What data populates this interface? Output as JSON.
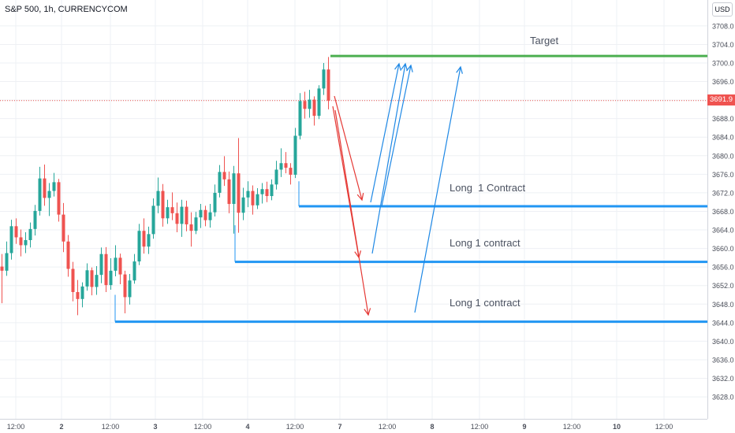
{
  "header": {
    "symbol": "S&P 500, 1h, CURRENCYCOM",
    "currency": "USD"
  },
  "chart_data": {
    "type": "candlestick",
    "title": "S&P 500, 1h, CURRENCYCOM",
    "last_price": "3691.9",
    "ylim": [
      3625,
      3712
    ],
    "y_ticks": [
      "3708.0",
      "3704.0",
      "3700.0",
      "3696.0",
      "3692.0",
      "3688.0",
      "3684.0",
      "3680.0",
      "3676.0",
      "3672.0",
      "3668.0",
      "3664.0",
      "3660.0",
      "3656.0",
      "3652.0",
      "3648.0",
      "3644.0",
      "3640.0",
      "3636.0",
      "3632.0",
      "3628.0"
    ],
    "x_ticks": [
      "12:00",
      "2",
      "12:00",
      "3",
      "12:00",
      "4",
      "12:00",
      "7",
      "12:00",
      "8",
      "12:00",
      "9",
      "12:00",
      "10",
      "12:00"
    ],
    "grid": true,
    "candles": [
      [
        3656.1,
        3658.8,
        3648.2,
        3655.2
      ],
      [
        3655.2,
        3661.5,
        3654.1,
        3659.0
      ],
      [
        3659.0,
        3666.2,
        3657.6,
        3664.8
      ],
      [
        3664.8,
        3666.5,
        3661.0,
        3662.4
      ],
      [
        3662.4,
        3664.1,
        3658.3,
        3660.7
      ],
      [
        3660.7,
        3663.5,
        3659.0,
        3661.8
      ],
      [
        3661.8,
        3665.6,
        3660.2,
        3664.2
      ],
      [
        3664.2,
        3669.4,
        3662.8,
        3668.1
      ],
      [
        3668.1,
        3677.6,
        3667.1,
        3675.1
      ],
      [
        3675.1,
        3678.1,
        3669.2,
        3670.9
      ],
      [
        3670.9,
        3674.1,
        3667.0,
        3672.4
      ],
      [
        3672.4,
        3676.3,
        3671.2,
        3674.3
      ],
      [
        3674.3,
        3675.0,
        3665.8,
        3667.3
      ],
      [
        3667.3,
        3669.8,
        3659.2,
        3661.5
      ],
      [
        3661.5,
        3662.9,
        3653.9,
        3655.6
      ],
      [
        3655.6,
        3657.1,
        3648.6,
        3650.6
      ],
      [
        3650.6,
        3653.2,
        3645.6,
        3649.1
      ],
      [
        3649.1,
        3652.7,
        3647.3,
        3651.8
      ],
      [
        3651.8,
        3656.8,
        3650.9,
        3655.3
      ],
      [
        3655.3,
        3655.9,
        3649.9,
        3651.7
      ],
      [
        3651.7,
        3656.2,
        3650.0,
        3654.3
      ],
      [
        3654.3,
        3660.2,
        3652.5,
        3658.8
      ],
      [
        3658.8,
        3660.3,
        3650.6,
        3652.1
      ],
      [
        3652.1,
        3657.9,
        3651.1,
        3655.2
      ],
      [
        3655.2,
        3660.7,
        3654.0,
        3658.0
      ],
      [
        3658.0,
        3658.9,
        3652.3,
        3654.4
      ],
      [
        3654.4,
        3655.2,
        3646.0,
        3649.5
      ],
      [
        3649.5,
        3654.5,
        3647.9,
        3653.1
      ],
      [
        3653.1,
        3658.8,
        3652.4,
        3657.2
      ],
      [
        3657.2,
        3665.3,
        3656.4,
        3663.8
      ],
      [
        3663.8,
        3666.5,
        3658.9,
        3660.4
      ],
      [
        3660.4,
        3664.7,
        3658.8,
        3663.1
      ],
      [
        3663.1,
        3670.8,
        3662.1,
        3669.2
      ],
      [
        3669.2,
        3675.3,
        3667.6,
        3672.4
      ],
      [
        3672.4,
        3673.9,
        3664.7,
        3666.5
      ],
      [
        3666.5,
        3670.5,
        3665.3,
        3668.9
      ],
      [
        3668.9,
        3672.1,
        3666.1,
        3667.6
      ],
      [
        3667.6,
        3669.9,
        3663.5,
        3665.3
      ],
      [
        3665.3,
        3670.5,
        3662.5,
        3669.0
      ],
      [
        3669.0,
        3670.3,
        3663.7,
        3665.2
      ],
      [
        3665.2,
        3667.8,
        3660.4,
        3663.8
      ],
      [
        3663.8,
        3667.9,
        3663.1,
        3666.7
      ],
      [
        3666.7,
        3669.6,
        3664.4,
        3668.3
      ],
      [
        3668.3,
        3669.2,
        3664.8,
        3666.1
      ],
      [
        3666.1,
        3669.6,
        3664.5,
        3667.8
      ],
      [
        3667.8,
        3673.8,
        3666.9,
        3672.0
      ],
      [
        3672.0,
        3678.0,
        3671.0,
        3676.5
      ],
      [
        3676.5,
        3679.9,
        3673.5,
        3674.9
      ],
      [
        3674.9,
        3676.6,
        3667.6,
        3669.6
      ],
      [
        3669.6,
        3677.8,
        3663.2,
        3676.2
      ],
      [
        3676.2,
        3683.8,
        3663.4,
        3667.7
      ],
      [
        3667.7,
        3673.1,
        3666.1,
        3671.0
      ],
      [
        3671.0,
        3674.5,
        3668.9,
        3672.4
      ],
      [
        3672.4,
        3673.6,
        3667.3,
        3669.3
      ],
      [
        3669.3,
        3673.0,
        3668.5,
        3671.7
      ],
      [
        3671.7,
        3674.1,
        3669.7,
        3672.8
      ],
      [
        3672.8,
        3674.4,
        3670.0,
        3671.3
      ],
      [
        3671.3,
        3674.9,
        3670.4,
        3673.8
      ],
      [
        3673.8,
        3678.9,
        3672.7,
        3677.0
      ],
      [
        3677.0,
        3681.6,
        3675.4,
        3678.4
      ],
      [
        3678.4,
        3680.8,
        3676.2,
        3677.4
      ],
      [
        3677.4,
        3678.4,
        3673.8,
        3675.9
      ],
      [
        3675.9,
        3686.0,
        3675.2,
        3684.3
      ],
      [
        3684.3,
        3693.5,
        3683.5,
        3691.8
      ],
      [
        3691.8,
        3693.8,
        3688.0,
        3690.1
      ],
      [
        3690.1,
        3694.2,
        3688.2,
        3692.1
      ],
      [
        3692.1,
        3692.8,
        3686.5,
        3688.6
      ],
      [
        3688.6,
        3695.2,
        3687.9,
        3694.5
      ],
      [
        3694.5,
        3700.0,
        3693.1,
        3698.6
      ],
      [
        3698.6,
        3701.3,
        3690.0,
        3691.9
      ]
    ],
    "lines": [
      {
        "label": "Target",
        "price": 3701.5,
        "color": "#4caf50"
      },
      {
        "label": "Long  1 Contract",
        "price": 3669.1,
        "color": "#2196f3"
      },
      {
        "label": "Long 1 contract",
        "price": 3657.1,
        "color": "#2196f3"
      },
      {
        "label": "Long 1 contract",
        "price": 3644.2,
        "color": "#2196f3"
      }
    ],
    "colors": {
      "up": "#26a69a",
      "down": "#ef5350",
      "target": "#4caf50",
      "support": "#2196f3",
      "arrow_down": "#e53935",
      "arrow_up": "#1e88e5",
      "grid": "#eef0f4",
      "axis_text": "#4a4e59"
    }
  }
}
